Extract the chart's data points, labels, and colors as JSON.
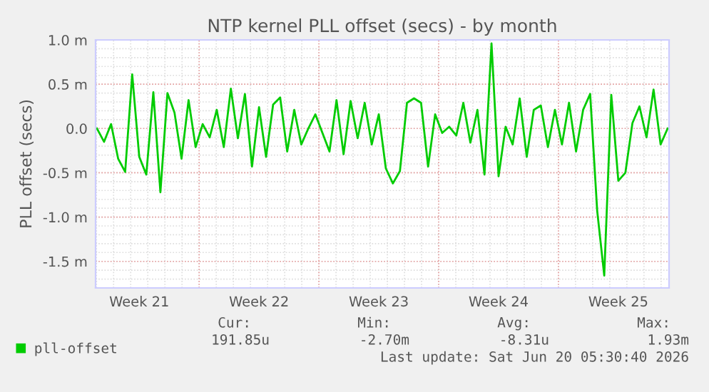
{
  "chart_data": {
    "type": "line",
    "title": "NTP kernel PLL offset (secs) - by month",
    "ylabel": "PLL offset (secs)",
    "categories": [
      null,
      null,
      null,
      null,
      null,
      null,
      "Week 21",
      null,
      null,
      null,
      null,
      null,
      null,
      null,
      null,
      null,
      null,
      null,
      null,
      null,
      null,
      null,
      null,
      "Week 22",
      null,
      null,
      null,
      null,
      null,
      null,
      null,
      null,
      null,
      null,
      null,
      null,
      null,
      null,
      null,
      null,
      "Week 23",
      null,
      null,
      null,
      null,
      null,
      null,
      null,
      null,
      null,
      null,
      null,
      null,
      null,
      null,
      null,
      null,
      "Week 24",
      null,
      null,
      null,
      null,
      null,
      null,
      null,
      null,
      null,
      null,
      null,
      null,
      null,
      null,
      null,
      null,
      "Week 25",
      null,
      null,
      null,
      null,
      null,
      null,
      null
    ],
    "series": [
      {
        "name": "pll-offset",
        "color": "#00cc00",
        "values": [
          0.0,
          -0.15,
          0.05,
          -0.34,
          -0.49,
          0.61,
          -0.32,
          -0.52,
          0.41,
          -0.72,
          0.4,
          0.18,
          -0.34,
          0.32,
          -0.21,
          0.05,
          -0.1,
          0.21,
          -0.21,
          0.45,
          -0.11,
          0.39,
          -0.43,
          0.24,
          -0.32,
          0.27,
          0.35,
          -0.26,
          0.21,
          -0.18,
          0.0,
          0.16,
          -0.05,
          -0.26,
          0.32,
          -0.29,
          0.31,
          -0.11,
          0.29,
          -0.18,
          0.16,
          -0.45,
          -0.62,
          -0.48,
          0.29,
          0.34,
          0.29,
          -0.43,
          0.16,
          -0.05,
          0.02,
          -0.08,
          0.29,
          -0.16,
          0.21,
          -0.52,
          0.96,
          -0.54,
          0.02,
          -0.18,
          0.34,
          -0.32,
          0.21,
          0.26,
          -0.21,
          0.21,
          -0.18,
          0.29,
          -0.26,
          0.21,
          0.39,
          -0.93,
          -1.66,
          0.38,
          -0.59,
          -0.5,
          0.06,
          0.25,
          -0.1,
          0.44,
          -0.18,
          0.0
        ]
      }
    ],
    "ylim": [
      -1.8,
      1.0
    ],
    "yticks": [
      {
        "value": 1.0,
        "label": "1.0 m"
      },
      {
        "value": 0.5,
        "label": "0.5 m"
      },
      {
        "value": 0.0,
        "label": "0.0"
      },
      {
        "value": -0.5,
        "label": "-0.5 m"
      },
      {
        "value": -1.0,
        "label": "-1.0 m"
      },
      {
        "value": -1.5,
        "label": "-1.5 m"
      }
    ],
    "grid": true,
    "legend": "bottom",
    "line_style": "solid",
    "marker": "none",
    "annotations": [
      "Cur:",
      "Min:",
      "Avg:",
      "Max:",
      "191.85u",
      "-2.70m",
      "-8.31u",
      "1.93m",
      "Last update: Sat Jun 20 05:30:40 2026"
    ]
  }
}
